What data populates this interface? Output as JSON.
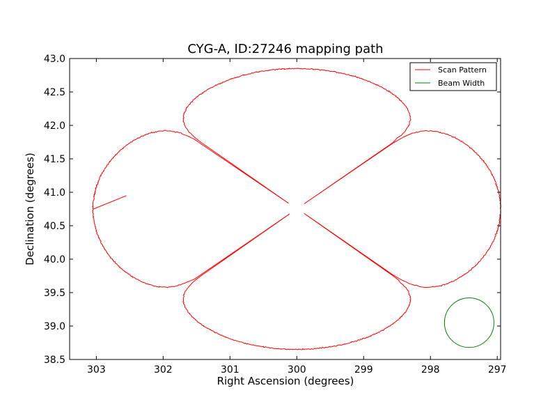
{
  "chart_data": {
    "type": "line",
    "title": "CYG-A, ID:27246 mapping path",
    "xlabel": "Right Ascension (degrees)",
    "ylabel": "Declination (degrees)",
    "xlim": [
      303.4,
      296.95
    ],
    "ylim": [
      38.5,
      43.0
    ],
    "x_inverted": true,
    "xticks": [
      303,
      302,
      301,
      300,
      299,
      298,
      297
    ],
    "yticks": [
      38.5,
      39.0,
      39.5,
      40.0,
      40.5,
      41.0,
      41.5,
      42.0,
      42.5,
      43.0
    ],
    "xtick_labels": [
      "303",
      "302",
      "301",
      "300",
      "299",
      "298",
      "297"
    ],
    "ytick_labels": [
      "38.5",
      "39.0",
      "39.5",
      "40.0",
      "40.5",
      "41.0",
      "41.5",
      "42.0",
      "42.5",
      "43.0"
    ],
    "grid": false,
    "legend": {
      "placement": "top-right",
      "entries": [
        {
          "name": "Scan Pattern",
          "color": "#ff0000"
        },
        {
          "name": "Beam Width",
          "color": "#008000"
        }
      ]
    },
    "series": [
      {
        "name": "Scan Pattern",
        "kind": "rose-path",
        "color": "#ff0000",
        "center": [
          300.0,
          40.75
        ],
        "lobe_extent_ra": 3.05,
        "lobe_extent_dec": 2.1,
        "petal_exponent": 12,
        "start_ra": 302.55,
        "start_dec": 40.95
      },
      {
        "name": "Beam Width",
        "kind": "circle",
        "color": "#008000",
        "center": [
          297.42,
          39.05
        ],
        "radius_dec": 0.37
      }
    ]
  }
}
